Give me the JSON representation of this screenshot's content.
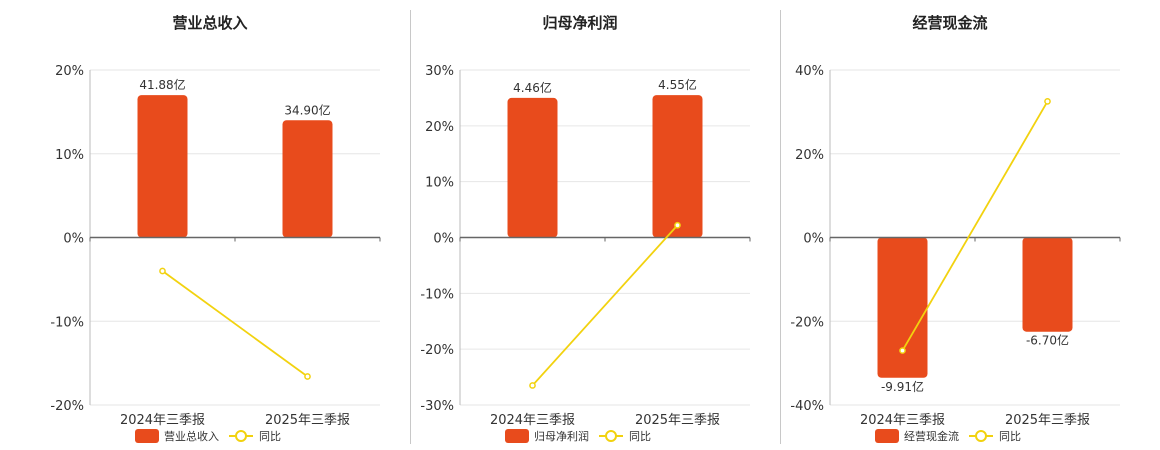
{
  "chart_data": [
    {
      "type": "bar",
      "title": "营业总收入",
      "categories": [
        "2024年三季报",
        "2025年三季报"
      ],
      "series": [
        {
          "name": "营业总收入",
          "kind": "bar",
          "values": [
            17.0,
            14.0
          ],
          "labels": [
            "41.88亿",
            "34.90亿"
          ],
          "color": "#e84b1c"
        },
        {
          "name": "同比",
          "kind": "line",
          "values": [
            -4.0,
            -16.6
          ],
          "color": "#f2d20f"
        }
      ],
      "ylim": [
        -20,
        20
      ],
      "yticks": [
        20,
        10,
        0,
        -10,
        -20
      ],
      "ytick_labels": [
        "20%",
        "10%",
        "0%",
        "-10%",
        "-20%"
      ],
      "grid": true,
      "legend": "bottom"
    },
    {
      "type": "bar",
      "title": "归母净利润",
      "categories": [
        "2024年三季报",
        "2025年三季报"
      ],
      "series": [
        {
          "name": "归母净利润",
          "kind": "bar",
          "values": [
            25.0,
            25.5
          ],
          "labels": [
            "4.46亿",
            "4.55亿"
          ],
          "color": "#e84b1c"
        },
        {
          "name": "同比",
          "kind": "line",
          "values": [
            -26.5,
            2.2
          ],
          "color": "#f2d20f"
        }
      ],
      "ylim": [
        -30,
        30
      ],
      "yticks": [
        30,
        20,
        10,
        0,
        -10,
        -20,
        -30
      ],
      "ytick_labels": [
        "30%",
        "20%",
        "10%",
        "0%",
        "-10%",
        "-20%",
        "-30%"
      ],
      "grid": true,
      "legend": "bottom"
    },
    {
      "type": "bar",
      "title": "经营现金流",
      "categories": [
        "2024年三季报",
        "2025年三季报"
      ],
      "series": [
        {
          "name": "经营现金流",
          "kind": "bar",
          "values": [
            -33.5,
            -22.5
          ],
          "labels": [
            "-9.91亿",
            "-6.70亿"
          ],
          "color": "#e84b1c"
        },
        {
          "name": "同比",
          "kind": "line",
          "values": [
            -27.0,
            32.5
          ],
          "color": "#f2d20f"
        }
      ],
      "ylim": [
        -40,
        40
      ],
      "yticks": [
        40,
        20,
        0,
        -20,
        -40
      ],
      "ytick_labels": [
        "40%",
        "20%",
        "0%",
        "-20%",
        "-40%"
      ],
      "grid": true,
      "legend": "bottom"
    }
  ]
}
